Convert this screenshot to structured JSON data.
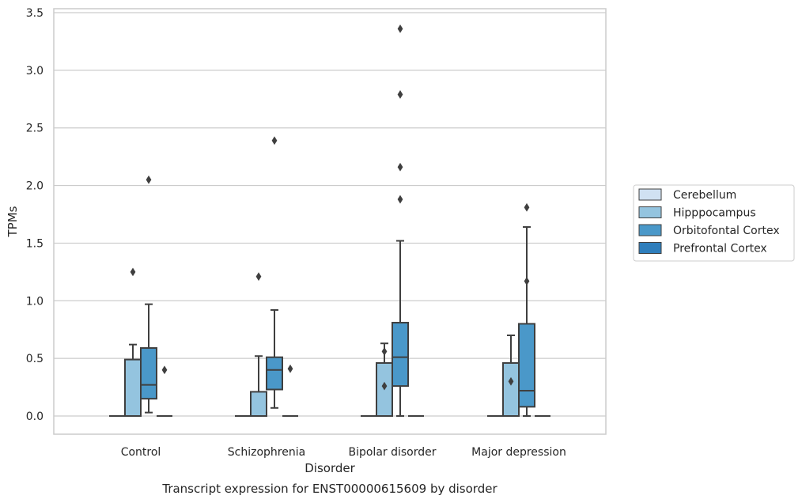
{
  "chart_data": {
    "type": "box",
    "title": "Transcript expression for ENST00000615609 by disorder",
    "xlabel": "Disorder",
    "ylabel": "TPMs",
    "ylim": [
      -0.16,
      3.55
    ],
    "yticks": [
      0.0,
      0.5,
      1.0,
      1.5,
      2.0,
      2.5,
      3.0,
      3.5
    ],
    "ytick_labels": [
      "0.0",
      "0.5",
      "1.0",
      "1.5",
      "2.0",
      "2.5",
      "3.0",
      "3.5"
    ],
    "grid": "horizontal",
    "legend_position": "right",
    "categories": [
      "Control",
      "Schizophrenia",
      "Bipolar disorder",
      "Major depression"
    ],
    "series": [
      {
        "name": "Cerebellum",
        "color": "#d0e1f2",
        "boxes": [
          {
            "min": 0,
            "q1": 0,
            "median": 0,
            "q3": 0,
            "max": 0,
            "outliers": []
          },
          {
            "min": 0,
            "q1": 0,
            "median": 0,
            "q3": 0,
            "max": 0,
            "outliers": []
          },
          {
            "min": 0,
            "q1": 0,
            "median": 0,
            "q3": 0,
            "max": 0,
            "outliers": []
          },
          {
            "min": 0,
            "q1": 0,
            "median": 0,
            "q3": 0,
            "max": 0,
            "outliers": []
          }
        ]
      },
      {
        "name": "Hipppocampus",
        "color": "#94c4df",
        "boxes": [
          {
            "min": 0,
            "q1": 0,
            "median": 0,
            "q3": 0.49,
            "max": 0.62,
            "outliers": [
              1.25
            ]
          },
          {
            "min": 0,
            "q1": 0,
            "median": 0,
            "q3": 0.21,
            "max": 0.52,
            "outliers": [
              1.21
            ]
          },
          {
            "min": 0,
            "q1": 0,
            "median": 0,
            "q3": 0.46,
            "max": 0.63,
            "outliers": [
              0.56,
              0.26
            ]
          },
          {
            "min": 0,
            "q1": 0,
            "median": 0,
            "q3": 0.46,
            "max": 0.7,
            "outliers": [
              0.3
            ]
          }
        ]
      },
      {
        "name": "Orbitofontal Cortex",
        "color": "#4a98c9",
        "boxes": [
          {
            "min": 0.03,
            "q1": 0.15,
            "median": 0.27,
            "q3": 0.59,
            "max": 0.97,
            "outliers": [
              2.05
            ]
          },
          {
            "min": 0.07,
            "q1": 0.23,
            "median": 0.4,
            "q3": 0.51,
            "max": 0.92,
            "outliers": [
              2.39
            ]
          },
          {
            "min": 0,
            "q1": 0.26,
            "median": 0.51,
            "q3": 0.81,
            "max": 1.52,
            "outliers": [
              1.88,
              2.16,
              2.79,
              3.36
            ]
          },
          {
            "min": 0,
            "q1": 0.08,
            "median": 0.22,
            "q3": 0.8,
            "max": 1.64,
            "outliers": [
              1.17,
              1.81
            ]
          }
        ]
      },
      {
        "name": "Prefrontal Cortex",
        "color": "#2e7ebc",
        "boxes": [
          {
            "min": 0,
            "q1": 0,
            "median": 0,
            "q3": 0,
            "max": 0,
            "outliers": [
              0.4
            ]
          },
          {
            "min": 0,
            "q1": 0,
            "median": 0,
            "q3": 0,
            "max": 0,
            "outliers": [
              0.41
            ]
          },
          {
            "min": 0,
            "q1": 0,
            "median": 0,
            "q3": 0,
            "max": 0,
            "outliers": []
          },
          {
            "min": 0,
            "q1": 0,
            "median": 0,
            "q3": 0,
            "max": 0,
            "outliers": []
          }
        ]
      }
    ]
  }
}
